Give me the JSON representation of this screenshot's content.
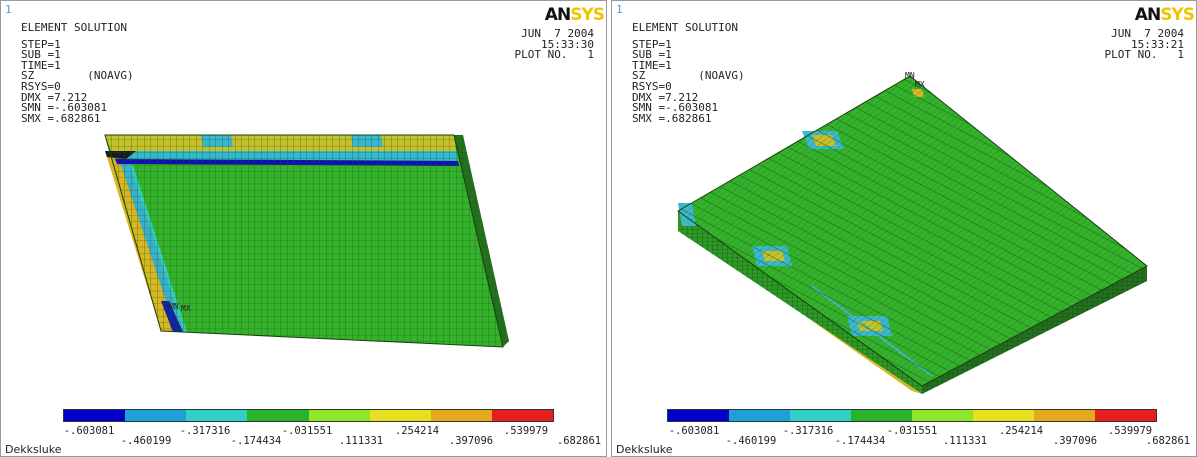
{
  "panels": [
    {
      "viewport": "1",
      "title": "ELEMENT SOLUTION",
      "info": [
        "STEP=1",
        "SUB =1",
        "TIME=1",
        "SZ        (NOAVG)",
        "RSYS=0",
        "DMX =7.212",
        "SMN =-.603081",
        "SMX =.682861"
      ],
      "date": "JUN  7 2004",
      "time": "15:33:30",
      "plot": "PLOT NO.   1",
      "footer": "Dekksluke",
      "marks": [
        "MN",
        "MX"
      ]
    },
    {
      "viewport": "1",
      "title": "ELEMENT SOLUTION",
      "info": [
        "STEP=1",
        "SUB =1",
        "TIME=1",
        "SZ        (NOAVG)",
        "RSYS=0",
        "DMX =7.212",
        "SMN =-.603081",
        "SMX =.682861"
      ],
      "date": "JUN  7 2004",
      "time": "15:33:21",
      "plot": "PLOT NO.   1",
      "footer": "Dekksluke",
      "marks": [
        "MN",
        "MX"
      ]
    }
  ],
  "logo": {
    "dark": "AN",
    "light": "SYS"
  },
  "legend": {
    "colors": [
      "#0000c8",
      "#1ea0d8",
      "#30d0c8",
      "#28b428",
      "#8ee62a",
      "#e6e01e",
      "#e6a81e",
      "#e61e1e"
    ],
    "labels_top": [
      "-.603081",
      "-.317316",
      "-.031551",
      ".254214",
      ".539979"
    ],
    "labels_bottom": [
      "-.460199",
      "-.174434",
      ".111331",
      ".397096",
      ".682861"
    ]
  }
}
